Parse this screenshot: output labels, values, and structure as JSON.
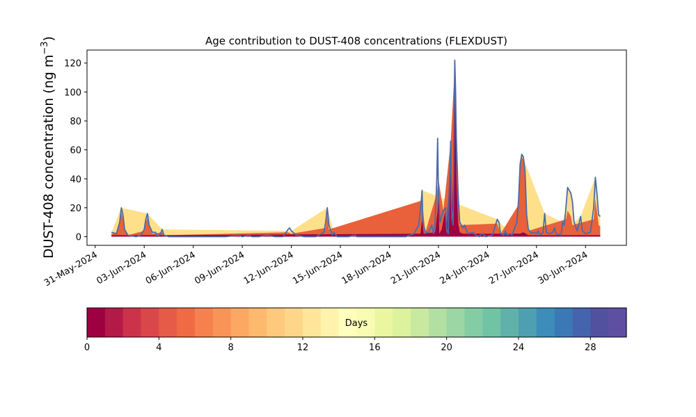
{
  "chart_data": {
    "type": "area",
    "title": "Age contribution to DUST-408 concentrations (FLEXDUST)",
    "ylabel_main": "DUST-408 concentration (ng m",
    "ylabel_sup": "−3",
    "ylabel_close": ")",
    "xlabel": "",
    "ylim": [
      -6,
      129
    ],
    "yticks": [
      0,
      20,
      40,
      60,
      80,
      100,
      120
    ],
    "xlim_days": [
      -0.5,
      32.5
    ],
    "xtick_labels": [
      "31-May-2024",
      "03-Jun-2024",
      "06-Jun-2024",
      "09-Jun-2024",
      "12-Jun-2024",
      "15-Jun-2024",
      "18-Jun-2024",
      "21-Jun-2024",
      "24-Jun-2024",
      "27-Jun-2024",
      "30-Jun-2024"
    ],
    "xtick_days": [
      0,
      3,
      6,
      9,
      12,
      15,
      18,
      21,
      24,
      27,
      30
    ],
    "total_series": {
      "name": "Total",
      "color": "#4a6aa8",
      "points": [
        [
          1.0,
          3
        ],
        [
          1.3,
          2
        ],
        [
          1.5,
          10
        ],
        [
          1.6,
          20
        ],
        [
          1.7,
          15
        ],
        [
          1.8,
          5
        ],
        [
          2.0,
          1
        ],
        [
          2.5,
          0
        ],
        [
          2.8,
          1
        ],
        [
          3.0,
          5
        ],
        [
          3.1,
          12
        ],
        [
          3.2,
          16
        ],
        [
          3.3,
          8
        ],
        [
          3.5,
          3
        ],
        [
          3.7,
          3
        ],
        [
          3.8,
          0
        ],
        [
          4.0,
          2
        ],
        [
          4.1,
          5
        ],
        [
          4.2,
          1
        ],
        [
          4.5,
          0
        ],
        [
          6.0,
          0
        ],
        [
          8.0,
          0
        ],
        [
          8.8,
          1
        ],
        [
          9.0,
          0
        ],
        [
          9.4,
          1
        ],
        [
          9.6,
          0
        ],
        [
          10.0,
          0
        ],
        [
          10.5,
          1
        ],
        [
          11.0,
          0
        ],
        [
          11.5,
          0
        ],
        [
          11.8,
          5
        ],
        [
          11.9,
          6
        ],
        [
          12.0,
          4
        ],
        [
          12.3,
          1
        ],
        [
          12.8,
          0
        ],
        [
          13.5,
          0
        ],
        [
          14.0,
          3
        ],
        [
          14.1,
          10
        ],
        [
          14.2,
          20
        ],
        [
          14.3,
          8
        ],
        [
          14.5,
          1
        ],
        [
          14.6,
          3
        ],
        [
          14.8,
          0
        ],
        [
          15.5,
          0
        ],
        [
          15.9,
          1
        ],
        [
          16.0,
          0
        ],
        [
          17.0,
          0
        ],
        [
          18.0,
          0
        ],
        [
          19.0,
          0
        ],
        [
          19.5,
          2
        ],
        [
          19.8,
          8
        ],
        [
          19.95,
          25
        ],
        [
          20.0,
          32
        ],
        [
          20.05,
          10
        ],
        [
          20.2,
          3
        ],
        [
          20.4,
          3
        ],
        [
          20.6,
          8
        ],
        [
          20.7,
          2
        ],
        [
          20.8,
          10
        ],
        [
          20.9,
          40
        ],
        [
          20.95,
          68
        ],
        [
          21.0,
          30
        ],
        [
          21.1,
          10
        ],
        [
          21.3,
          18
        ],
        [
          21.45,
          20
        ],
        [
          21.5,
          5
        ],
        [
          21.6,
          2
        ],
        [
          21.75,
          66
        ],
        [
          21.8,
          20
        ],
        [
          21.9,
          8
        ],
        [
          21.95,
          70
        ],
        [
          22.0,
          122
        ],
        [
          22.05,
          100
        ],
        [
          22.1,
          60
        ],
        [
          22.2,
          30
        ],
        [
          22.3,
          10
        ],
        [
          22.5,
          6
        ],
        [
          22.6,
          8
        ],
        [
          22.8,
          2
        ],
        [
          23.1,
          3
        ],
        [
          23.3,
          1
        ],
        [
          23.5,
          0
        ],
        [
          23.6,
          2
        ],
        [
          23.7,
          2
        ],
        [
          23.9,
          0
        ],
        [
          24.3,
          1
        ],
        [
          24.6,
          12
        ],
        [
          24.7,
          10
        ],
        [
          24.8,
          2
        ],
        [
          25.0,
          1
        ],
        [
          25.1,
          4
        ],
        [
          25.2,
          1
        ],
        [
          25.4,
          2
        ],
        [
          25.5,
          1
        ],
        [
          25.8,
          10
        ],
        [
          25.9,
          25
        ],
        [
          26.0,
          50
        ],
        [
          26.1,
          57
        ],
        [
          26.2,
          55
        ],
        [
          26.3,
          45
        ],
        [
          26.4,
          15
        ],
        [
          26.5,
          5
        ],
        [
          26.7,
          2
        ],
        [
          26.8,
          3
        ],
        [
          27.0,
          2
        ],
        [
          27.1,
          4
        ],
        [
          27.2,
          1
        ],
        [
          27.4,
          3
        ],
        [
          27.5,
          16
        ],
        [
          27.6,
          3
        ],
        [
          27.8,
          2
        ],
        [
          28.0,
          3
        ],
        [
          28.1,
          6
        ],
        [
          28.2,
          2
        ],
        [
          28.5,
          1
        ],
        [
          28.6,
          10
        ],
        [
          28.7,
          8
        ],
        [
          28.8,
          20
        ],
        [
          28.9,
          34
        ],
        [
          29.1,
          30
        ],
        [
          29.2,
          24
        ],
        [
          29.3,
          10
        ],
        [
          29.5,
          4
        ],
        [
          29.7,
          14
        ],
        [
          29.8,
          4
        ],
        [
          30.0,
          2
        ],
        [
          30.3,
          3
        ],
        [
          30.5,
          20
        ],
        [
          30.6,
          41
        ],
        [
          30.7,
          30
        ],
        [
          30.8,
          15
        ],
        [
          30.9,
          14
        ]
      ]
    },
    "age_bands": [
      {
        "age_days": 0,
        "color": "#9e0142",
        "points": [
          [
            1.0,
            1
          ],
          [
            4.0,
            1
          ],
          [
            19.9,
            2
          ],
          [
            20.0,
            12
          ],
          [
            20.1,
            2
          ],
          [
            20.8,
            3
          ],
          [
            20.95,
            18
          ],
          [
            21.0,
            35
          ],
          [
            21.05,
            2
          ],
          [
            21.2,
            5
          ],
          [
            21.4,
            17
          ],
          [
            21.5,
            2
          ],
          [
            21.75,
            60
          ],
          [
            21.8,
            8
          ],
          [
            21.95,
            60
          ],
          [
            22.0,
            100
          ],
          [
            22.05,
            80
          ],
          [
            22.1,
            40
          ],
          [
            22.2,
            10
          ],
          [
            22.3,
            3
          ],
          [
            22.5,
            2
          ],
          [
            26.0,
            2
          ],
          [
            26.2,
            3
          ],
          [
            26.5,
            1
          ],
          [
            30.9,
            1
          ]
        ]
      },
      {
        "age_days": 4,
        "color": "#e8613a",
        "points": [
          [
            1.0,
            2
          ],
          [
            1.3,
            2
          ],
          [
            1.5,
            9
          ],
          [
            1.6,
            17
          ],
          [
            1.7,
            12
          ],
          [
            1.8,
            4
          ],
          [
            2.0,
            1
          ],
          [
            3.0,
            4
          ],
          [
            3.1,
            10
          ],
          [
            3.2,
            13
          ],
          [
            3.3,
            7
          ],
          [
            3.5,
            2
          ],
          [
            4.1,
            3
          ],
          [
            4.2,
            1
          ],
          [
            11.8,
            3
          ],
          [
            12.0,
            2
          ],
          [
            14.1,
            6
          ],
          [
            14.2,
            15
          ],
          [
            14.3,
            5
          ],
          [
            20.0,
            25
          ],
          [
            20.2,
            3
          ],
          [
            20.9,
            30
          ],
          [
            21.0,
            40
          ],
          [
            21.3,
            18
          ],
          [
            21.75,
            65
          ],
          [
            22.0,
            118
          ],
          [
            22.3,
            8
          ],
          [
            24.6,
            9
          ],
          [
            24.8,
            2
          ],
          [
            25.9,
            22
          ],
          [
            26.0,
            48
          ],
          [
            26.1,
            55
          ],
          [
            26.2,
            53
          ],
          [
            26.3,
            42
          ],
          [
            26.4,
            12
          ],
          [
            26.5,
            4
          ],
          [
            28.8,
            12
          ],
          [
            28.9,
            18
          ],
          [
            29.1,
            14
          ],
          [
            29.2,
            8
          ],
          [
            30.5,
            12
          ],
          [
            30.6,
            26
          ],
          [
            30.7,
            18
          ],
          [
            30.8,
            8
          ],
          [
            30.9,
            7
          ]
        ]
      },
      {
        "age_days": 12,
        "color": "#fee08b",
        "points": [
          [
            1.0,
            3
          ],
          [
            1.6,
            20
          ],
          [
            3.2,
            16
          ],
          [
            4.1,
            5
          ],
          [
            12.0,
            4
          ],
          [
            14.2,
            20
          ],
          [
            14.6,
            3
          ],
          [
            19.95,
            25
          ],
          [
            20.0,
            32
          ],
          [
            24.6,
            12
          ],
          [
            25.5,
            1
          ],
          [
            25.8,
            10
          ],
          [
            26.1,
            57
          ],
          [
            27.5,
            16
          ],
          [
            28.6,
            10
          ],
          [
            28.8,
            20
          ],
          [
            28.9,
            34
          ],
          [
            29.1,
            30
          ],
          [
            29.2,
            24
          ],
          [
            29.3,
            10
          ],
          [
            29.7,
            14
          ],
          [
            30.6,
            41
          ],
          [
            30.7,
            30
          ],
          [
            30.8,
            15
          ],
          [
            30.9,
            14
          ]
        ]
      }
    ],
    "colorbar": {
      "label": "Days",
      "range": [
        0,
        30
      ],
      "ticks": [
        0,
        4,
        8,
        12,
        16,
        20,
        24,
        28
      ],
      "tick_labels": [
        "0",
        "4",
        "8",
        "12",
        "16",
        "20",
        "24",
        "28"
      ],
      "colors": [
        "#9e0142",
        "#b41a47",
        "#cc334b",
        "#da474a",
        "#e65b47",
        "#f06b43",
        "#f6814e",
        "#f99457",
        "#fca862",
        "#fdb96d",
        "#fec97c",
        "#fed689",
        "#fee599",
        "#fff2ac",
        "#fffebc",
        "#f7fcb2",
        "#eaf7a0",
        "#dcf29c",
        "#c8e99f",
        "#b2e0a2",
        "#9bd6a4",
        "#84cda4",
        "#70c4a4",
        "#5fb1aa",
        "#4e9fb1",
        "#3c8dba",
        "#3a79b6",
        "#4465ad",
        "#5251a0",
        "#5e4fa2"
      ]
    }
  }
}
